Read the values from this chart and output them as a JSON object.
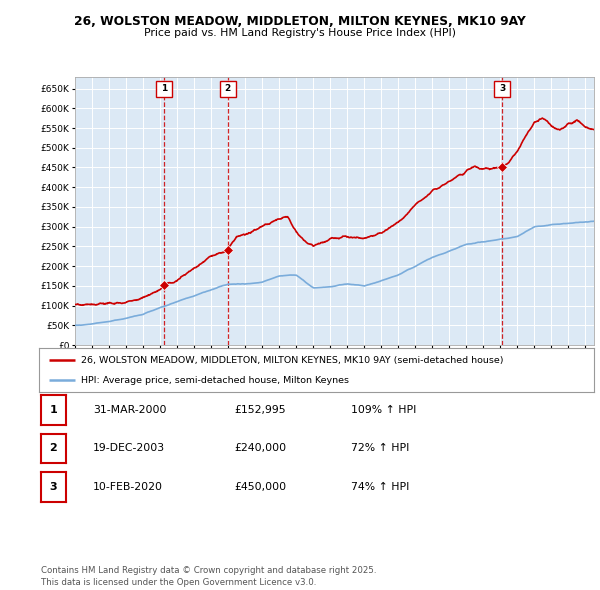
{
  "title": "26, WOLSTON MEADOW, MIDDLETON, MILTON KEYNES, MK10 9AY",
  "subtitle": "Price paid vs. HM Land Registry's House Price Index (HPI)",
  "property_label": "26, WOLSTON MEADOW, MIDDLETON, MILTON KEYNES, MK10 9AY (semi-detached house)",
  "hpi_label": "HPI: Average price, semi-detached house, Milton Keynes",
  "property_color": "#cc0000",
  "hpi_color": "#7aacdb",
  "background_color": "#dce9f5",
  "transactions": [
    {
      "num": 1,
      "date": "31-MAR-2000",
      "price": 152995,
      "price_str": "£152,995",
      "year": 2000.25,
      "hpi_pct": "109% ↑ HPI"
    },
    {
      "num": 2,
      "date": "19-DEC-2003",
      "price": 240000,
      "price_str": "£240,000",
      "year": 2003.97,
      "hpi_pct": "72% ↑ HPI"
    },
    {
      "num": 3,
      "date": "10-FEB-2020",
      "price": 450000,
      "price_str": "£450,000",
      "year": 2020.11,
      "hpi_pct": "74% ↑ HPI"
    }
  ],
  "ylim": [
    0,
    680000
  ],
  "yticks": [
    0,
    50000,
    100000,
    150000,
    200000,
    250000,
    300000,
    350000,
    400000,
    450000,
    500000,
    550000,
    600000,
    650000
  ],
  "xlim_start": 1995,
  "xlim_end": 2025.5,
  "xticks": [
    1995,
    1996,
    1997,
    1998,
    1999,
    2000,
    2001,
    2002,
    2003,
    2004,
    2005,
    2006,
    2007,
    2008,
    2009,
    2010,
    2011,
    2012,
    2013,
    2014,
    2015,
    2016,
    2017,
    2018,
    2019,
    2020,
    2021,
    2022,
    2023,
    2024,
    2025
  ],
  "footer": "Contains HM Land Registry data © Crown copyright and database right 2025.\nThis data is licensed under the Open Government Licence v3.0.",
  "hpi_anchors_x": [
    1995.0,
    1996.0,
    1997.0,
    1998.0,
    1999.0,
    2000.0,
    2001.0,
    2002.0,
    2003.0,
    2004.0,
    2005.0,
    2006.0,
    2007.0,
    2008.0,
    2009.0,
    2010.0,
    2011.0,
    2012.0,
    2013.0,
    2014.0,
    2015.0,
    2016.0,
    2017.0,
    2018.0,
    2019.0,
    2020.0,
    2021.0,
    2022.0,
    2023.0,
    2024.0,
    2025.0,
    2025.5
  ],
  "hpi_anchors_y": [
    50000,
    54000,
    60000,
    68000,
    78000,
    95000,
    110000,
    125000,
    140000,
    155000,
    155000,
    160000,
    175000,
    178000,
    145000,
    148000,
    155000,
    150000,
    162000,
    178000,
    200000,
    222000,
    238000,
    255000,
    262000,
    268000,
    275000,
    300000,
    305000,
    308000,
    312000,
    313000
  ],
  "prop_anchors_x": [
    1995.0,
    1996.0,
    1997.0,
    1998.0,
    1999.0,
    2000.0,
    2000.25,
    2001.0,
    2002.0,
    2003.0,
    2003.97,
    2004.5,
    2005.0,
    2006.0,
    2007.0,
    2007.5,
    2008.0,
    2008.5,
    2009.0,
    2009.5,
    2010.0,
    2011.0,
    2012.0,
    2013.0,
    2014.0,
    2015.0,
    2016.0,
    2017.0,
    2018.0,
    2018.5,
    2019.0,
    2020.0,
    2020.11,
    2020.5,
    2021.0,
    2021.5,
    2022.0,
    2022.5,
    2023.0,
    2023.5,
    2024.0,
    2024.5,
    2025.0,
    2025.5
  ],
  "prop_anchors_y": [
    102000,
    103000,
    105000,
    108000,
    120000,
    140000,
    152995,
    165000,
    195000,
    225000,
    240000,
    275000,
    280000,
    300000,
    320000,
    325000,
    285000,
    265000,
    250000,
    260000,
    270000,
    275000,
    270000,
    285000,
    310000,
    355000,
    390000,
    415000,
    440000,
    455000,
    445000,
    450000,
    450000,
    465000,
    490000,
    530000,
    565000,
    575000,
    555000,
    545000,
    560000,
    570000,
    550000,
    545000
  ]
}
